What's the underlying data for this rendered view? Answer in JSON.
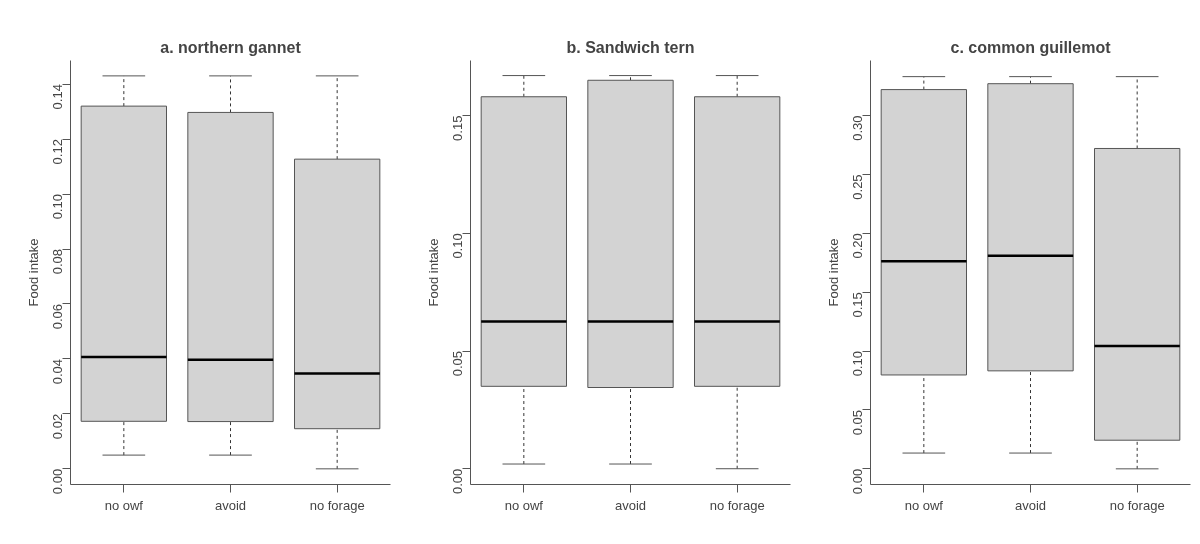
{
  "chart_data": [
    {
      "type": "box",
      "title": "a. northern gannet",
      "ylabel": "Food intake",
      "categories": [
        "no owf",
        "avoid",
        "no forage"
      ],
      "grid": false,
      "ylim": [
        -0.0057,
        0.1486
      ],
      "yticks": [
        {
          "value": 0,
          "label": "0.00"
        },
        {
          "value": 0.02,
          "label": "0.02"
        },
        {
          "value": 0.04,
          "label": "0.04"
        },
        {
          "value": 0.06,
          "label": "0.06"
        },
        {
          "value": 0.08,
          "label": "0.08"
        },
        {
          "value": 0.1,
          "label": "0.10"
        },
        {
          "value": 0.12,
          "label": "0.12"
        },
        {
          "value": 0.14,
          "label": "0.14"
        }
      ],
      "series": [
        {
          "color": "#d3d3d3",
          "boxes": [
            {
              "low": 0.005,
              "q1": 0.0173,
              "median": 0.0407,
              "q3": 0.132,
              "high": 0.143
            },
            {
              "low": 0.005,
              "q1": 0.0172,
              "median": 0.0397,
              "q3": 0.1297,
              "high": 0.143
            },
            {
              "low": 0.0,
              "q1": 0.0146,
              "median": 0.0347,
              "q3": 0.1127,
              "high": 0.143
            }
          ]
        }
      ]
    },
    {
      "type": "box",
      "title": "b. Sandwich tern",
      "ylabel": "Food intake",
      "categories": [
        "no owf",
        "avoid",
        "no forage"
      ],
      "grid": false,
      "ylim": [
        -0.0067,
        0.1734
      ],
      "yticks": [
        {
          "value": 0,
          "label": "0.00"
        },
        {
          "value": 0.05,
          "label": "0.05"
        },
        {
          "value": 0.1,
          "label": "0.10"
        },
        {
          "value": 0.15,
          "label": "0.15"
        }
      ],
      "series": [
        {
          "color": "#d3d3d3",
          "boxes": [
            {
              "low": 0.002,
              "q1": 0.035,
              "median": 0.0625,
              "q3": 0.158,
              "high": 0.167
            },
            {
              "low": 0.002,
              "q1": 0.0345,
              "median": 0.0625,
              "q3": 0.165,
              "high": 0.167
            },
            {
              "low": 0.0,
              "q1": 0.035,
              "median": 0.0625,
              "q3": 0.158,
              "high": 0.167
            }
          ]
        }
      ]
    },
    {
      "type": "box",
      "title": "c. common guillemot",
      "ylabel": "Food intake",
      "categories": [
        "no owf",
        "avoid",
        "no forage"
      ],
      "grid": false,
      "ylim": [
        -0.0133,
        0.3467
      ],
      "yticks": [
        {
          "value": 0,
          "label": "0.00"
        },
        {
          "value": 0.05,
          "label": "0.05"
        },
        {
          "value": 0.1,
          "label": "0.10"
        },
        {
          "value": 0.15,
          "label": "0.15"
        },
        {
          "value": 0.2,
          "label": "0.20"
        },
        {
          "value": 0.25,
          "label": "0.25"
        },
        {
          "value": 0.3,
          "label": "0.30"
        }
      ],
      "series": [
        {
          "color": "#d3d3d3",
          "boxes": [
            {
              "low": 0.0134,
              "q1": 0.0797,
              "median": 0.1763,
              "q3": 0.322,
              "high": 0.333
            },
            {
              "low": 0.0134,
              "q1": 0.0832,
              "median": 0.181,
              "q3": 0.327,
              "high": 0.333
            },
            {
              "low": 0.0,
              "q1": 0.0243,
              "median": 0.1043,
              "q3": 0.272,
              "high": 0.333
            }
          ]
        }
      ]
    }
  ]
}
